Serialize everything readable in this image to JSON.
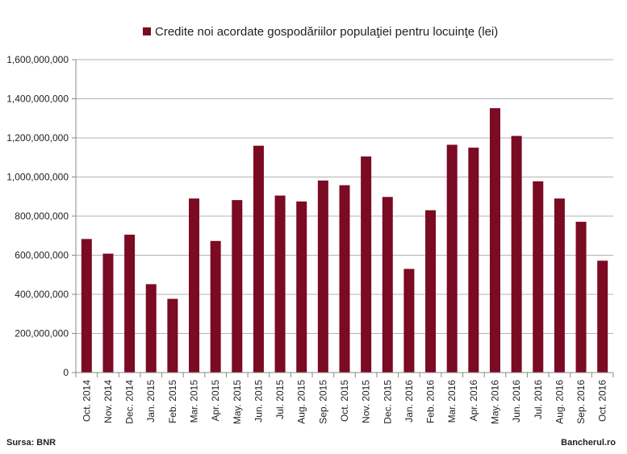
{
  "colors": {
    "bar": "#7b0a23",
    "grid": "#b3b3b3",
    "axis": "#888888"
  },
  "footer": {
    "source": "Sursa: BNR",
    "brand": "Bancherul.ro"
  },
  "chart_data": {
    "type": "bar",
    "title": "",
    "xlabel": "",
    "ylabel": "",
    "legend": {
      "position": "top",
      "entries": [
        "Credite noi acordate gospodăriilor populaţiei pentru locuinţe (lei)"
      ]
    },
    "grid": true,
    "ylim": [
      0,
      1600000000
    ],
    "yticks": [
      {
        "value": 0,
        "label": "0"
      },
      {
        "value": 200000000,
        "label": "200,000,000"
      },
      {
        "value": 400000000,
        "label": "400,000,000"
      },
      {
        "value": 600000000,
        "label": "600,000,000"
      },
      {
        "value": 800000000,
        "label": "800,000,000"
      },
      {
        "value": 1000000000,
        "label": "1,000,000,000"
      },
      {
        "value": 1200000000,
        "label": "1,200,000,000"
      },
      {
        "value": 1400000000,
        "label": "1,400,000,000"
      },
      {
        "value": 1600000000,
        "label": "1,600,000,000"
      }
    ],
    "categories": [
      "Oct. 2014",
      "Nov. 2014",
      "Dec. 2014",
      "Jan. 2015",
      "Feb. 2015",
      "Mar. 2015",
      "Apr. 2015",
      "May. 2015",
      "Jun. 2015",
      "Jul. 2015",
      "Aug. 2015",
      "Sep. 2015",
      "Oct. 2015",
      "Nov. 2015",
      "Dec. 2015",
      "Jan. 2016",
      "Feb. 2016",
      "Mar. 2016",
      "Apr. 2016",
      "May. 2016",
      "Jun. 2016",
      "Jul. 2016",
      "Aug. 2016",
      "Sep. 2016",
      "Oct. 2016"
    ],
    "series": [
      {
        "name": "Credite noi acordate gospodăriilor populaţiei pentru locuinţe (lei)",
        "values": [
          683000000,
          608000000,
          705000000,
          452000000,
          377000000,
          890000000,
          673000000,
          882000000,
          1160000000,
          905000000,
          875000000,
          982000000,
          958000000,
          1105000000,
          898000000,
          530000000,
          830000000,
          1165000000,
          1150000000,
          1352000000,
          1210000000,
          978000000,
          890000000,
          771000000,
          572000000
        ]
      }
    ]
  }
}
